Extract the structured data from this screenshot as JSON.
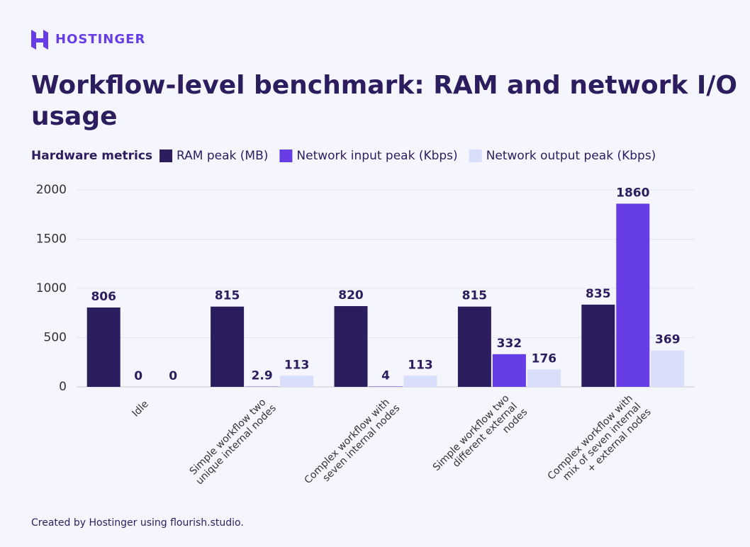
{
  "brand": "HOSTINGER",
  "chart_data": {
    "type": "bar",
    "title": "Workflow-level benchmark: RAM and network I/O usage",
    "legend_title": "Hardware metrics",
    "categories": [
      "Idle",
      "Simple workflow two unique internal nodes",
      "Complex workflow with seven internal nodes",
      "Simple workflow two different external nodes",
      "Complex workflow with mix of seven internal + external nodes"
    ],
    "series": [
      {
        "name": "RAM peak (MB)",
        "color": "#2c1d5f",
        "values": [
          806,
          815,
          820,
          815,
          835
        ]
      },
      {
        "name": "Network input peak (Kbps)",
        "color": "#673de6",
        "values": [
          0,
          2.9,
          4,
          332,
          1860
        ]
      },
      {
        "name": "Network output peak (Kbps)",
        "color": "#d9defa",
        "values": [
          0,
          113,
          113,
          176,
          369
        ]
      }
    ],
    "ylim": [
      0,
      2000
    ],
    "yticks": [
      0,
      500,
      1000,
      1500,
      2000
    ],
    "grid": true,
    "footer": "Created by Hostinger using flourish.studio."
  }
}
